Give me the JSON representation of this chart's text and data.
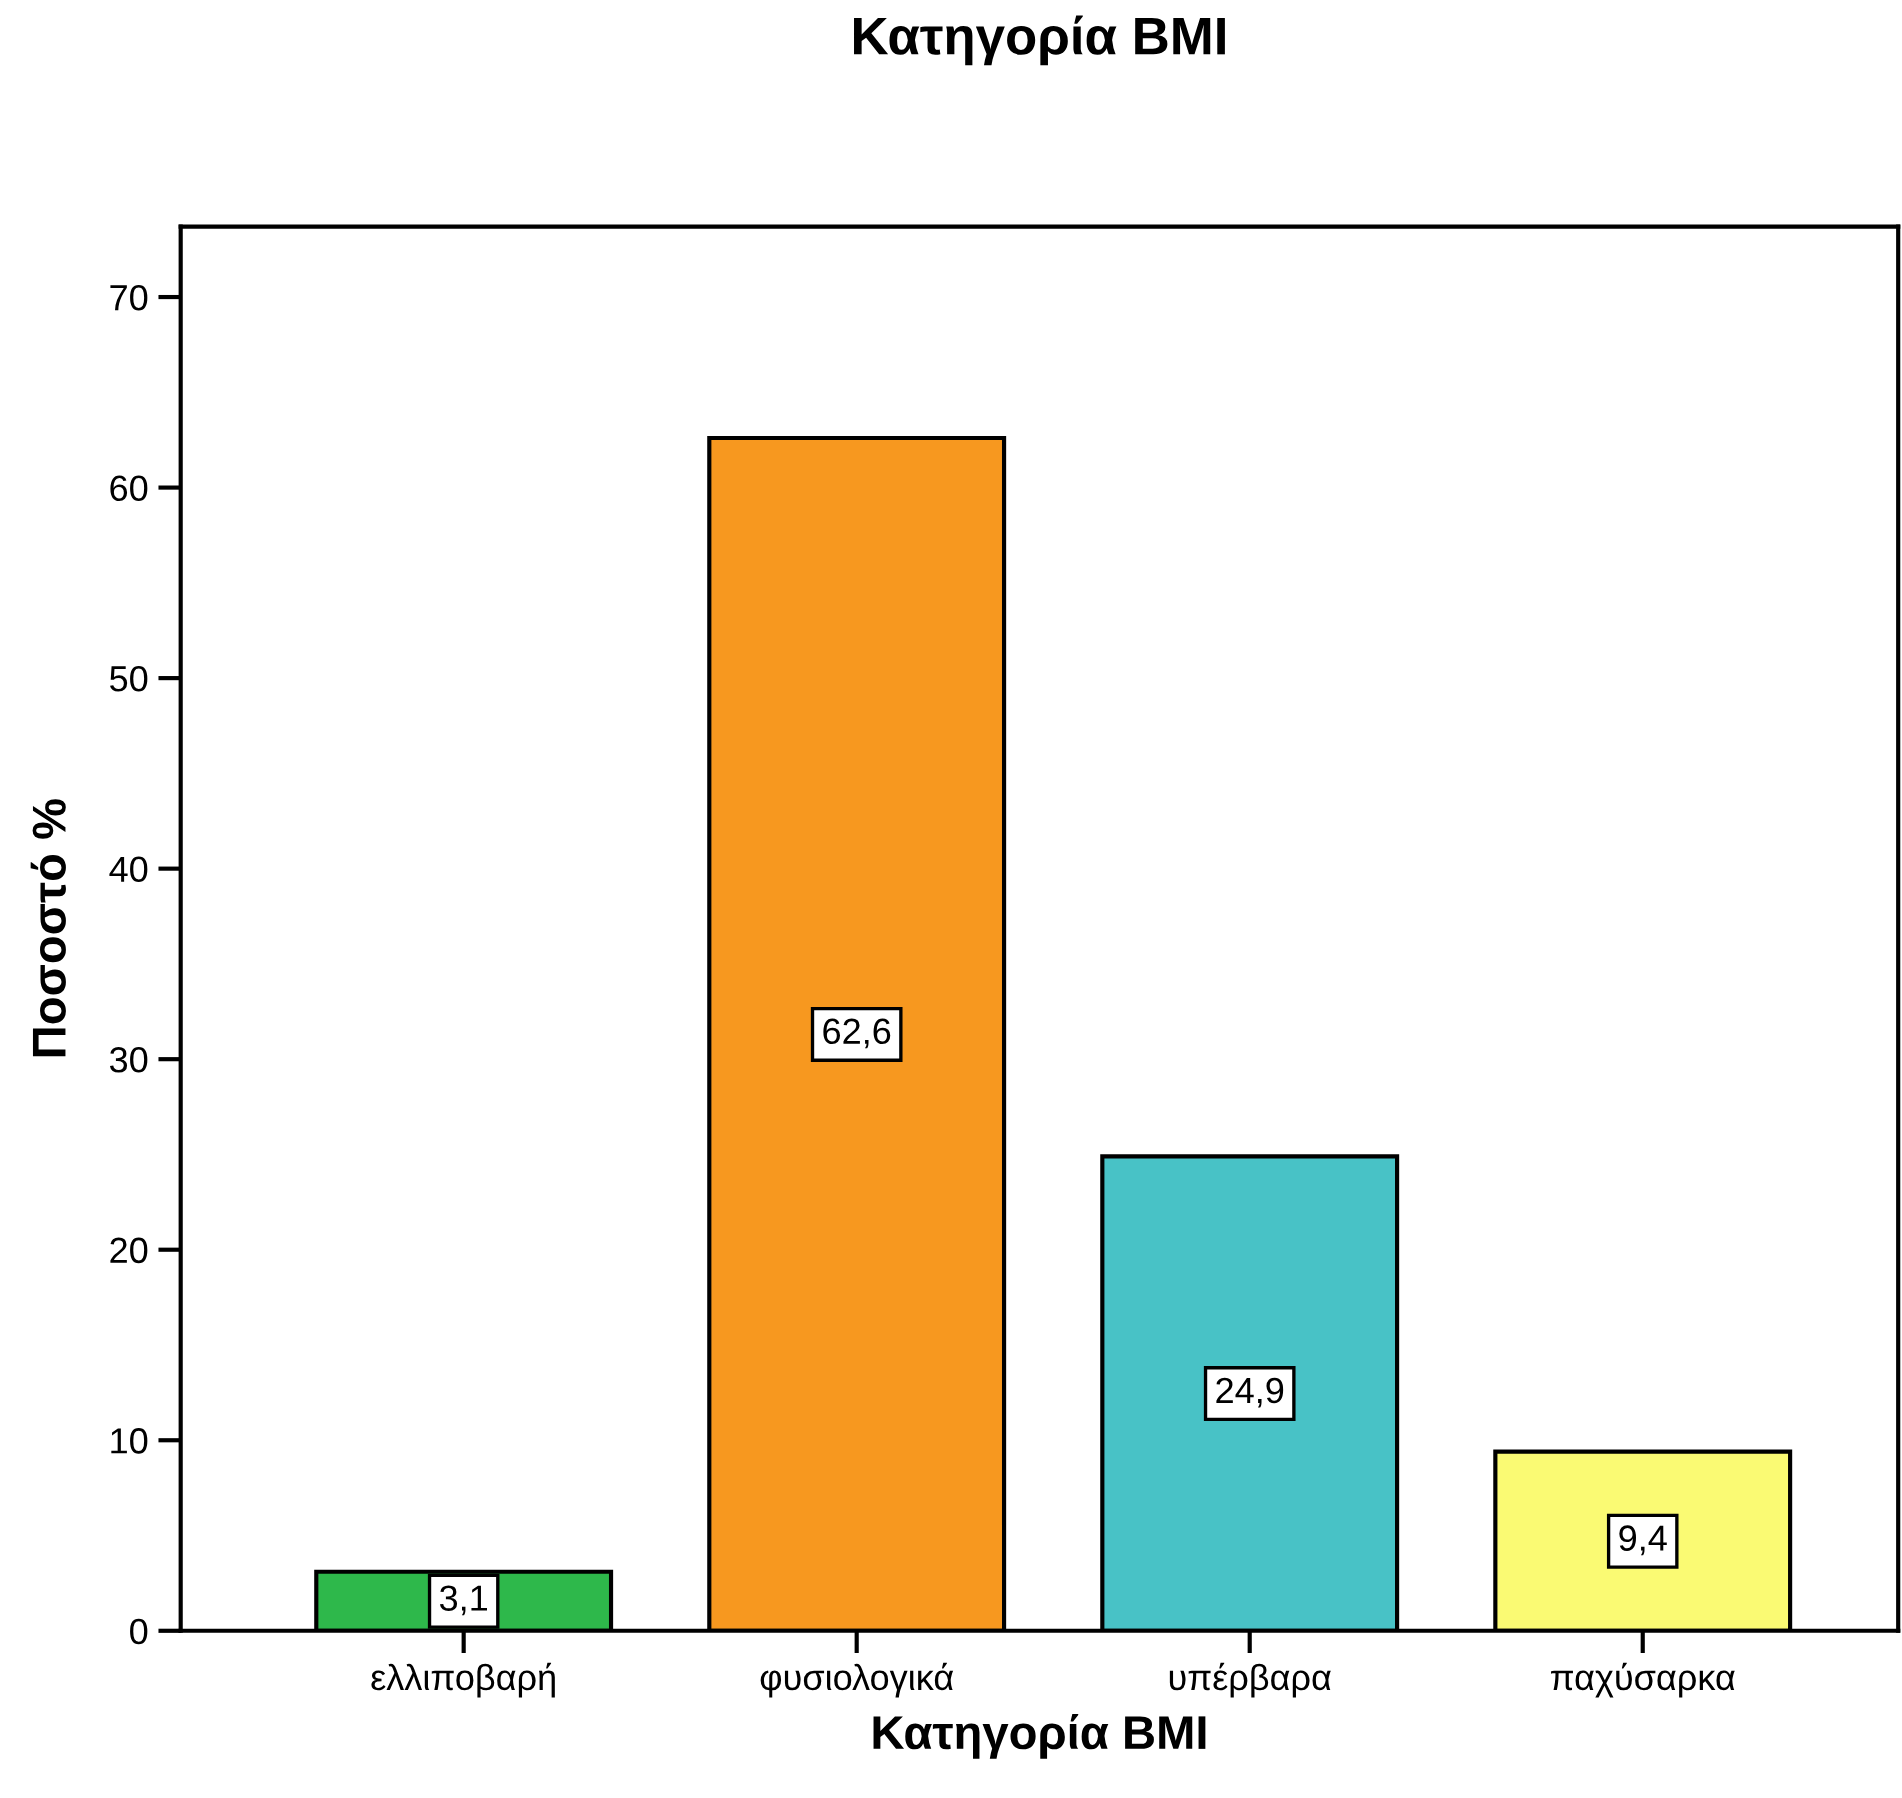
{
  "chart_data": {
    "type": "bar",
    "title": "Κατηγορία BMI",
    "xlabel": "Κατηγορία BMI",
    "ylabel": "Ποσοστό %",
    "categories": [
      "ελλιποβαρή",
      "φυσιολογικά",
      "υπέρβαρα",
      "παχύσαρκα"
    ],
    "values": [
      3.1,
      62.6,
      24.9,
      9.4
    ],
    "value_labels": [
      "3,1",
      "62,6",
      "24,9",
      "9,4"
    ],
    "colors": [
      "#2eb84b",
      "#f7981f",
      "#48c2c6",
      "#fafa73"
    ],
    "ylim": [
      0,
      73.7
    ],
    "yticks": [
      0,
      10,
      20,
      30,
      40,
      50,
      60,
      70
    ],
    "grid": false,
    "legend": false
  }
}
